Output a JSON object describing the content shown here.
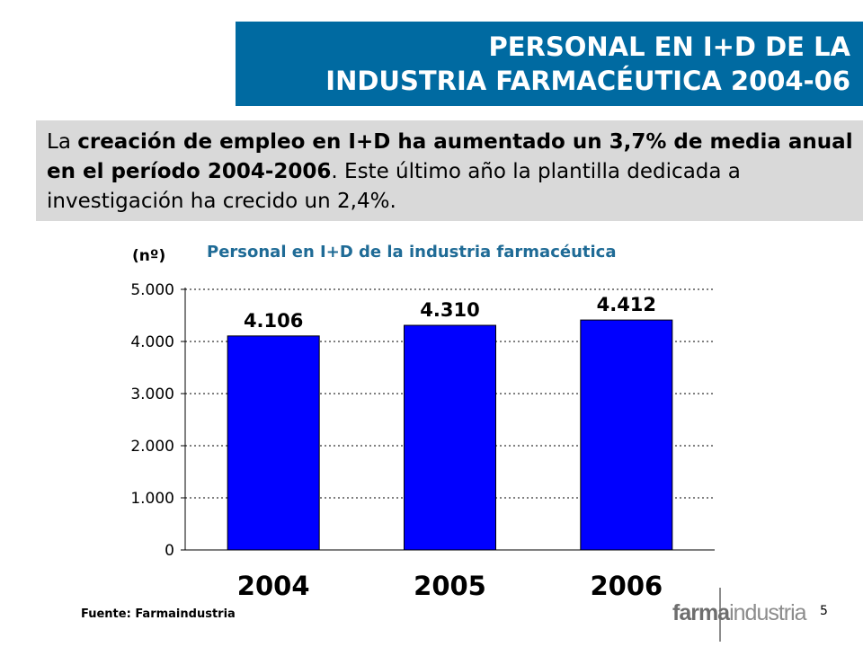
{
  "header": {
    "title_line1": "PERSONAL EN I+D DE LA",
    "title_line2": "INDUSTRIA FARMACÉUTICA 2004-06"
  },
  "summary": {
    "part1": "La ",
    "bold": "creación de empleo en I+D ha aumentado un 3,7% de media anual en el período 2004-2006",
    "part2": ". Este último año la plantilla dedicada a investigación ha crecido un 2,4%."
  },
  "chart_data": {
    "type": "bar",
    "title": "Personal en I+D de la industria farmacéutica",
    "ylabel": "(nº)",
    "xlabel": "",
    "categories": [
      "2004",
      "2005",
      "2006"
    ],
    "values": [
      4106,
      4310,
      4412
    ],
    "value_labels": [
      "4.106",
      "4.310",
      "4.412"
    ],
    "ylim": [
      0,
      5000
    ],
    "yticks": [
      0,
      1000,
      2000,
      3000,
      4000,
      5000
    ],
    "ytick_labels": [
      "0",
      "1.000",
      "2.000",
      "3.000",
      "4.000",
      "5.000"
    ],
    "grid": true,
    "bar_color": "#0000ff",
    "grid_color": "#000000"
  },
  "footer": {
    "source": "Fuente: Farmaindustria",
    "page_number": "5",
    "logo_bold": "farma",
    "logo_rest": "industria"
  },
  "colors": {
    "banner": "#006aa1",
    "chart_title": "#1f6b96",
    "summary_bg": "#d9d9d9"
  }
}
